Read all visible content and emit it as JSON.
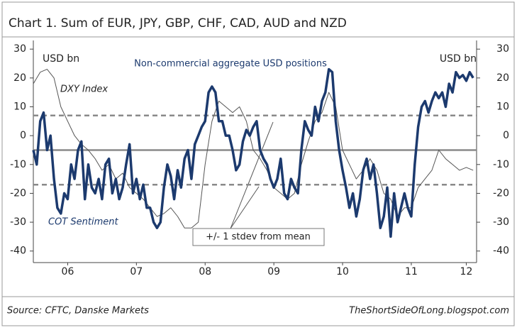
{
  "chart_data": {
    "type": "line",
    "title": "Chart 1. Sum of EUR, JPY, GBP, CHF, CAD, AUD and NZD",
    "y_label": "USD bn",
    "y2_label": "USD bn",
    "source": "Source: CFTC, Danske Markets",
    "credit": "TheShortSideOfLong.blogspot.com",
    "annotations": [
      "Non-commercial aggregate USD positions",
      "DXY Index",
      "COT Sentiment",
      "+/- 1 stdev from mean"
    ],
    "reference_lines": [
      {
        "value": 7,
        "style": "dashed"
      },
      {
        "value": -5,
        "style": "solid"
      },
      {
        "value": -17,
        "style": "dashed"
      }
    ],
    "xlim": [
      6,
      12.45
    ],
    "xticks": [
      {
        "value": 6.5,
        "label": "06"
      },
      {
        "value": 7.5,
        "label": "07"
      },
      {
        "value": 8.5,
        "label": "08"
      },
      {
        "value": 9.5,
        "label": "09"
      },
      {
        "value": 10.5,
        "label": "10"
      },
      {
        "value": 11.5,
        "label": "11"
      },
      {
        "value": 12.3,
        "label": "12"
      }
    ],
    "ylim": [
      -44,
      33
    ],
    "yticks": [
      -40,
      -30,
      -20,
      -10,
      0,
      10,
      20,
      30
    ],
    "y2lim": [
      -44,
      33
    ],
    "y2ticks": [
      -40,
      -30,
      -20,
      -10,
      0,
      10,
      20,
      30
    ],
    "series": [
      {
        "name": "COT Sentiment",
        "color": "#1c3a6e",
        "width": 3.5,
        "x": [
          6,
          6.05,
          6.1,
          6.15,
          6.2,
          6.25,
          6.3,
          6.35,
          6.4,
          6.45,
          6.5,
          6.55,
          6.6,
          6.65,
          6.7,
          6.75,
          6.8,
          6.85,
          6.9,
          6.95,
          7,
          7.05,
          7.1,
          7.15,
          7.2,
          7.25,
          7.3,
          7.35,
          7.4,
          7.45,
          7.5,
          7.55,
          7.6,
          7.65,
          7.7,
          7.75,
          7.8,
          7.85,
          7.9,
          7.95,
          8,
          8.05,
          8.1,
          8.15,
          8.2,
          8.25,
          8.3,
          8.35,
          8.4,
          8.45,
          8.5,
          8.55,
          8.6,
          8.65,
          8.7,
          8.75,
          8.8,
          8.85,
          8.9,
          8.95,
          9,
          9.05,
          9.1,
          9.15,
          9.2,
          9.25,
          9.3,
          9.35,
          9.4,
          9.45,
          9.5,
          9.55,
          9.6,
          9.65,
          9.7,
          9.75,
          9.8,
          9.85,
          9.9,
          9.95,
          10,
          10.05,
          10.1,
          10.15,
          10.2,
          10.25,
          10.3,
          10.35,
          10.4,
          10.45,
          10.5,
          10.55,
          10.6,
          10.65,
          10.7,
          10.75,
          10.8,
          10.85,
          10.9,
          10.95,
          11,
          11.05,
          11.1,
          11.15,
          11.2,
          11.25,
          11.3,
          11.35,
          11.4,
          11.45,
          11.5,
          11.55,
          11.6,
          11.65,
          11.7,
          11.75,
          11.8,
          11.85,
          11.9,
          11.95,
          12,
          12.05,
          12.1,
          12.15,
          12.2,
          12.25,
          12.3,
          12.35,
          12.4
        ],
        "values": [
          -5,
          -10,
          5,
          8,
          -5,
          0,
          -15,
          -25,
          -27,
          -20,
          -22,
          -10,
          -15,
          -5,
          -2,
          -22,
          -10,
          -18,
          -20,
          -15,
          -22,
          -10,
          -8,
          -20,
          -15,
          -22,
          -18,
          -10,
          -3,
          -20,
          -15,
          -22,
          -17,
          -25,
          -25,
          -30,
          -32,
          -30,
          -18,
          -10,
          -14,
          -22,
          -12,
          -18,
          -8,
          -5,
          -15,
          -3,
          0,
          3,
          5,
          15,
          17,
          15,
          5,
          5,
          0,
          0,
          -5,
          -12,
          -10,
          -2,
          2,
          0,
          3,
          5,
          -5,
          -8,
          -10,
          -15,
          -18,
          -15,
          -8,
          -20,
          -22,
          -15,
          -18,
          -20,
          -5,
          5,
          2,
          0,
          10,
          5,
          12,
          15,
          23,
          22,
          5,
          -5,
          -12,
          -18,
          -25,
          -20,
          -28,
          -22,
          -12,
          -8,
          -15,
          -10,
          -20,
          -32,
          -28,
          -18,
          -35,
          -20,
          -30,
          -25,
          -20,
          -25,
          -28,
          -10,
          3,
          10,
          12,
          8,
          12,
          15,
          13,
          15,
          10,
          18,
          15,
          22,
          20,
          21,
          19,
          22,
          20
        ]
      },
      {
        "name": "DXY Index",
        "color": "#555555",
        "width": 1,
        "x": [
          6,
          6.1,
          6.2,
          6.3,
          6.4,
          6.5,
          6.6,
          6.7,
          6.8,
          6.9,
          7,
          7.1,
          7.2,
          7.3,
          7.4,
          7.5,
          7.6,
          7.7,
          7.8,
          7.9,
          8,
          8.1,
          8.2,
          8.3,
          8.4,
          8.5,
          8.6,
          8.7,
          8.8,
          8.9,
          9,
          9.1,
          9.2,
          9.3,
          9.4,
          9.5,
          9.6,
          9.7,
          9.8,
          9.9,
          10,
          10.1,
          10.2,
          10.3,
          10.4,
          10.5,
          10.6,
          10.7,
          10.8,
          10.9,
          11,
          11.1,
          11.2,
          11.3,
          11.4,
          11.5,
          11.6,
          11.7,
          11.8,
          11.9,
          12,
          12.1,
          12.2,
          12.3,
          12.4
        ],
        "values": [
          18,
          22,
          23,
          20,
          10,
          5,
          0,
          -3,
          -5,
          -8,
          -12,
          -10,
          -15,
          -13,
          -18,
          -20,
          -22,
          -25,
          -28,
          -27,
          -25,
          -28,
          -32,
          -32,
          -30,
          -10,
          5,
          12,
          10,
          8,
          10,
          5,
          -5,
          -8,
          -12,
          -18,
          -20,
          -22,
          -20,
          -10,
          -2,
          5,
          8,
          15,
          10,
          -5,
          -10,
          -15,
          -12,
          -8,
          -12,
          -20,
          -22,
          -28,
          -25,
          -25,
          -18,
          -15,
          -12,
          -5,
          -8,
          -10,
          -12,
          -11,
          -12
        ]
      }
    ]
  }
}
